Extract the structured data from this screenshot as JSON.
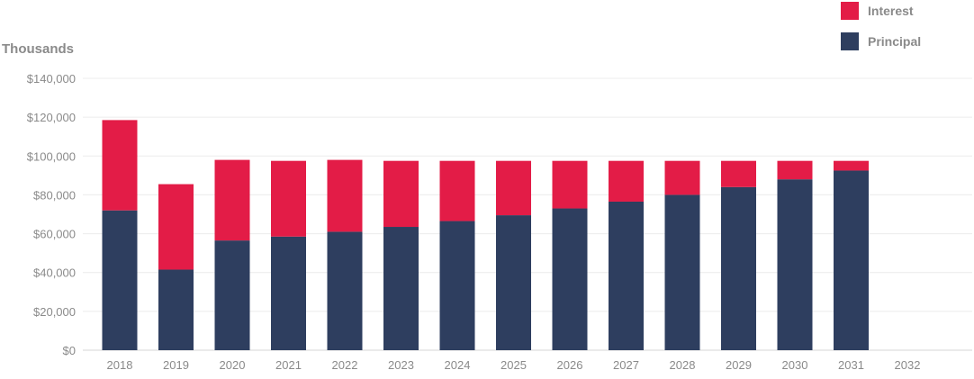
{
  "chart_data": {
    "type": "bar",
    "stacked": true,
    "unit_label": "Thousands",
    "categories": [
      "2018",
      "2019",
      "2020",
      "2021",
      "2022",
      "2023",
      "2024",
      "2025",
      "2026",
      "2027",
      "2028",
      "2029",
      "2030",
      "2031",
      "2032"
    ],
    "series": [
      {
        "name": "Principal",
        "color": "#2e3e5f",
        "values": [
          72000,
          41500,
          56500,
          58500,
          61000,
          63500,
          66500,
          69500,
          73000,
          76500,
          80000,
          84000,
          88000,
          92500,
          null
        ]
      },
      {
        "name": "Interest",
        "color": "#e31c47",
        "values": [
          46500,
          44000,
          41500,
          39000,
          37000,
          34000,
          31000,
          28000,
          24500,
          21000,
          17500,
          13500,
          9500,
          5000,
          null
        ]
      }
    ],
    "ylim": [
      0,
      140000
    ],
    "yticks": [
      0,
      20000,
      40000,
      60000,
      80000,
      100000,
      120000,
      140000
    ],
    "ytick_labels": [
      "$0",
      "$20,000",
      "$40,000",
      "$60,000",
      "$80,000",
      "$100,000",
      "$120,000",
      "$140,000"
    ],
    "legend": {
      "placement": "top-right",
      "order": [
        "Interest",
        "Principal"
      ]
    },
    "grid": true
  }
}
